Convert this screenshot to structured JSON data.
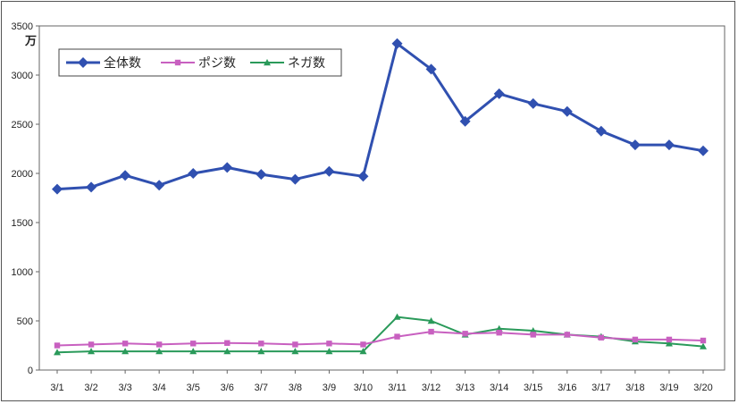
{
  "chart_data": {
    "type": "line",
    "unit_label": "万",
    "categories": [
      "3/1",
      "3/2",
      "3/3",
      "3/4",
      "3/5",
      "3/6",
      "3/7",
      "3/8",
      "3/9",
      "3/10",
      "3/11",
      "3/12",
      "3/13",
      "3/14",
      "3/15",
      "3/16",
      "3/17",
      "3/18",
      "3/19",
      "3/20"
    ],
    "y_ticks": [
      "0",
      "500",
      "1000",
      "1500",
      "2000",
      "2500",
      "3000",
      "3500"
    ],
    "ylim": [
      0,
      3500
    ],
    "grid": false,
    "legend_position": "top-left",
    "series": [
      {
        "name": "全体数",
        "color": "#3050b0",
        "marker": "diamond",
        "values": [
          1840,
          1860,
          1980,
          1880,
          2000,
          2060,
          1990,
          1940,
          2020,
          1970,
          3320,
          3060,
          2530,
          2810,
          2710,
          2630,
          2430,
          2290,
          2290,
          2230
        ]
      },
      {
        "name": "ポジ数",
        "color": "#c860c0",
        "marker": "square",
        "values": [
          250,
          260,
          270,
          260,
          270,
          275,
          270,
          260,
          270,
          260,
          340,
          390,
          370,
          380,
          360,
          360,
          330,
          310,
          310,
          300
        ]
      },
      {
        "name": "ネガ数",
        "color": "#2a9a5a",
        "marker": "triangle",
        "values": [
          180,
          190,
          190,
          190,
          190,
          190,
          190,
          190,
          190,
          190,
          540,
          500,
          360,
          420,
          400,
          360,
          340,
          290,
          270,
          240
        ]
      }
    ]
  }
}
